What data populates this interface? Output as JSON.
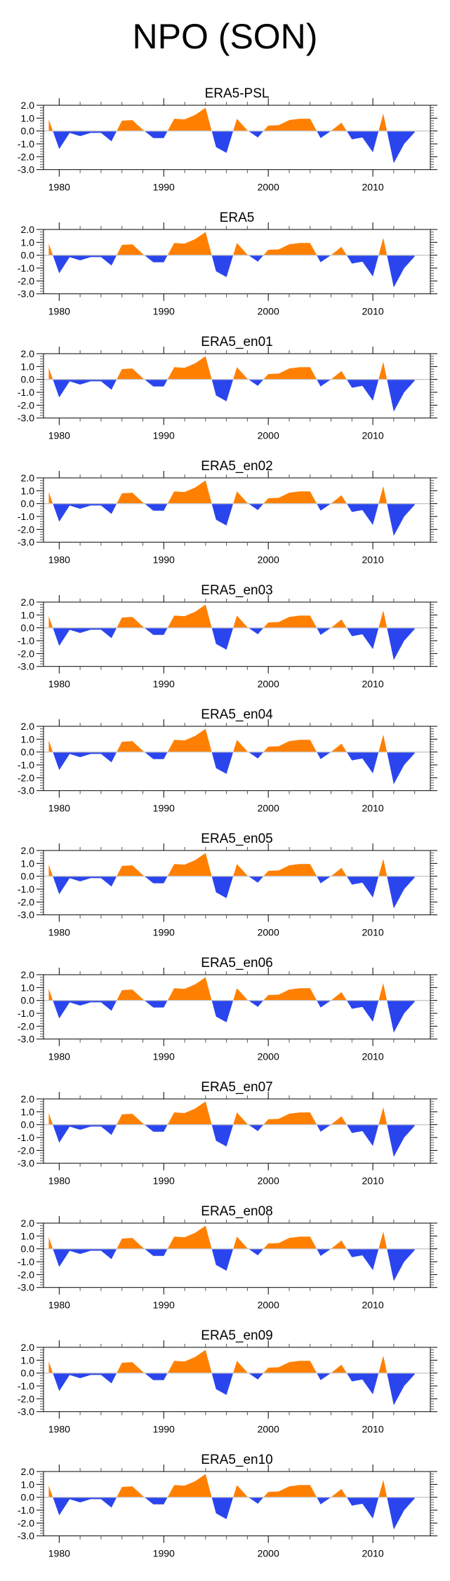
{
  "figure_title": "NPO (SON)",
  "colors": {
    "positive": "#FF8000",
    "negative": "#2A45EE",
    "zero_line": "#C8C8C8",
    "axis": "#000000"
  },
  "chart_data": {
    "type": "area",
    "title": "NPO (SON)",
    "xlabel": "",
    "ylabel": "",
    "xlim": [
      1978.5,
      2015.5
    ],
    "ylim": [
      -3.0,
      2.0
    ],
    "x_ticks": [
      1980,
      1990,
      2000,
      2010
    ],
    "x_tick_labels": [
      "1980",
      "1990",
      "2000",
      "2010"
    ],
    "y_ticks": [
      2.0,
      1.0,
      0.0,
      -1.0,
      -2.0,
      -3.0
    ],
    "y_tick_labels": [
      "2.0",
      "1.0",
      "0.0",
      "-1.0",
      "-2.0",
      "-3.0"
    ],
    "grid": false,
    "legend": "none",
    "fill_above_zero": "orange",
    "fill_below_zero": "blue",
    "x": [
      1979,
      1980,
      1981,
      1982,
      1983,
      1984,
      1985,
      1986,
      1987,
      1988,
      1989,
      1990,
      1991,
      1992,
      1993,
      1994,
      1995,
      1996,
      1997,
      1998,
      1999,
      2000,
      2001,
      2002,
      2003,
      2004,
      2005,
      2006,
      2007,
      2008,
      2009,
      2010,
      2011,
      2012,
      2013,
      2014
    ],
    "panels": [
      {
        "title": "ERA5-PSL",
        "values": [
          0.9,
          -1.4,
          -0.15,
          -0.4,
          -0.15,
          -0.15,
          -0.8,
          0.8,
          0.85,
          0.1,
          -0.55,
          -0.55,
          0.95,
          0.9,
          1.25,
          1.8,
          -1.25,
          -1.7,
          0.95,
          0.05,
          -0.5,
          0.42,
          0.45,
          0.85,
          0.95,
          0.95,
          -0.55,
          0.0,
          0.65,
          -0.65,
          -0.5,
          -1.65,
          1.35,
          -2.5,
          -1.0,
          -0.1
        ]
      },
      {
        "title": "ERA5",
        "values": [
          0.9,
          -1.4,
          -0.15,
          -0.4,
          -0.15,
          -0.15,
          -0.8,
          0.8,
          0.85,
          0.1,
          -0.55,
          -0.55,
          0.95,
          0.9,
          1.25,
          1.8,
          -1.25,
          -1.7,
          0.95,
          0.05,
          -0.5,
          0.42,
          0.45,
          0.85,
          0.95,
          0.95,
          -0.55,
          0.0,
          0.65,
          -0.65,
          -0.5,
          -1.65,
          1.35,
          -2.5,
          -1.0,
          -0.1
        ]
      },
      {
        "title": "ERA5_en01",
        "values": [
          0.9,
          -1.4,
          -0.15,
          -0.4,
          -0.15,
          -0.15,
          -0.8,
          0.8,
          0.85,
          0.1,
          -0.55,
          -0.55,
          0.95,
          0.9,
          1.25,
          1.8,
          -1.25,
          -1.7,
          0.95,
          0.05,
          -0.5,
          0.42,
          0.45,
          0.85,
          0.95,
          0.95,
          -0.55,
          0.0,
          0.65,
          -0.65,
          -0.5,
          -1.65,
          1.35,
          -2.5,
          -1.0,
          -0.1
        ]
      },
      {
        "title": "ERA5_en02",
        "values": [
          0.9,
          -1.4,
          -0.15,
          -0.4,
          -0.15,
          -0.15,
          -0.8,
          0.8,
          0.85,
          0.1,
          -0.55,
          -0.55,
          0.95,
          0.9,
          1.25,
          1.8,
          -1.25,
          -1.7,
          0.95,
          0.05,
          -0.5,
          0.42,
          0.45,
          0.85,
          0.95,
          0.95,
          -0.55,
          0.0,
          0.65,
          -0.65,
          -0.5,
          -1.65,
          1.35,
          -2.5,
          -1.0,
          -0.1
        ]
      },
      {
        "title": "ERA5_en03",
        "values": [
          0.9,
          -1.4,
          -0.15,
          -0.4,
          -0.15,
          -0.15,
          -0.8,
          0.8,
          0.85,
          0.1,
          -0.55,
          -0.55,
          0.95,
          0.9,
          1.25,
          1.8,
          -1.25,
          -1.7,
          0.95,
          0.05,
          -0.5,
          0.42,
          0.45,
          0.85,
          0.95,
          0.95,
          -0.55,
          0.0,
          0.65,
          -0.65,
          -0.5,
          -1.65,
          1.35,
          -2.5,
          -1.0,
          -0.1
        ]
      },
      {
        "title": "ERA5_en04",
        "values": [
          0.9,
          -1.4,
          -0.15,
          -0.4,
          -0.15,
          -0.15,
          -0.8,
          0.8,
          0.85,
          0.1,
          -0.55,
          -0.55,
          0.95,
          0.9,
          1.25,
          1.8,
          -1.25,
          -1.7,
          0.95,
          0.05,
          -0.5,
          0.42,
          0.45,
          0.85,
          0.95,
          0.95,
          -0.55,
          0.0,
          0.65,
          -0.65,
          -0.5,
          -1.65,
          1.35,
          -2.5,
          -1.0,
          -0.1
        ]
      },
      {
        "title": "ERA5_en05",
        "values": [
          0.9,
          -1.4,
          -0.15,
          -0.4,
          -0.15,
          -0.15,
          -0.8,
          0.8,
          0.85,
          0.1,
          -0.55,
          -0.55,
          0.95,
          0.9,
          1.25,
          1.8,
          -1.25,
          -1.7,
          0.95,
          0.05,
          -0.5,
          0.42,
          0.45,
          0.85,
          0.95,
          0.95,
          -0.55,
          0.0,
          0.65,
          -0.65,
          -0.5,
          -1.65,
          1.35,
          -2.5,
          -1.0,
          -0.1
        ]
      },
      {
        "title": "ERA5_en06",
        "values": [
          0.9,
          -1.4,
          -0.15,
          -0.4,
          -0.15,
          -0.15,
          -0.8,
          0.8,
          0.85,
          0.1,
          -0.55,
          -0.55,
          0.95,
          0.9,
          1.25,
          1.8,
          -1.25,
          -1.7,
          0.95,
          0.05,
          -0.5,
          0.42,
          0.45,
          0.85,
          0.95,
          0.95,
          -0.55,
          0.0,
          0.65,
          -0.65,
          -0.5,
          -1.65,
          1.35,
          -2.5,
          -1.0,
          -0.1
        ]
      },
      {
        "title": "ERA5_en07",
        "values": [
          0.9,
          -1.4,
          -0.15,
          -0.4,
          -0.15,
          -0.15,
          -0.8,
          0.8,
          0.85,
          0.1,
          -0.55,
          -0.55,
          0.95,
          0.9,
          1.25,
          1.8,
          -1.25,
          -1.7,
          0.95,
          0.05,
          -0.5,
          0.42,
          0.45,
          0.85,
          0.95,
          0.95,
          -0.55,
          0.0,
          0.65,
          -0.65,
          -0.5,
          -1.65,
          1.35,
          -2.5,
          -1.0,
          -0.1
        ]
      },
      {
        "title": "ERA5_en08",
        "values": [
          0.9,
          -1.4,
          -0.15,
          -0.4,
          -0.15,
          -0.15,
          -0.8,
          0.8,
          0.85,
          0.1,
          -0.55,
          -0.55,
          0.95,
          0.9,
          1.25,
          1.8,
          -1.25,
          -1.7,
          0.95,
          0.05,
          -0.5,
          0.42,
          0.45,
          0.85,
          0.95,
          0.95,
          -0.55,
          0.0,
          0.65,
          -0.65,
          -0.5,
          -1.65,
          1.35,
          -2.5,
          -1.0,
          -0.1
        ]
      },
      {
        "title": "ERA5_en09",
        "values": [
          0.9,
          -1.4,
          -0.15,
          -0.4,
          -0.15,
          -0.15,
          -0.8,
          0.8,
          0.85,
          0.1,
          -0.55,
          -0.55,
          0.95,
          0.9,
          1.25,
          1.8,
          -1.25,
          -1.7,
          0.95,
          0.05,
          -0.5,
          0.42,
          0.45,
          0.85,
          0.95,
          0.95,
          -0.55,
          0.0,
          0.65,
          -0.65,
          -0.5,
          -1.65,
          1.35,
          -2.5,
          -1.0,
          -0.1
        ]
      },
      {
        "title": "ERA5_en10",
        "values": [
          0.9,
          -1.4,
          -0.15,
          -0.4,
          -0.15,
          -0.15,
          -0.8,
          0.8,
          0.85,
          0.1,
          -0.55,
          -0.55,
          0.95,
          0.9,
          1.25,
          1.8,
          -1.25,
          -1.7,
          0.95,
          0.05,
          -0.5,
          0.42,
          0.45,
          0.85,
          0.95,
          0.95,
          -0.55,
          0.0,
          0.65,
          -0.65,
          -0.5,
          -1.65,
          1.35,
          -2.5,
          -1.0,
          -0.1
        ]
      }
    ]
  }
}
